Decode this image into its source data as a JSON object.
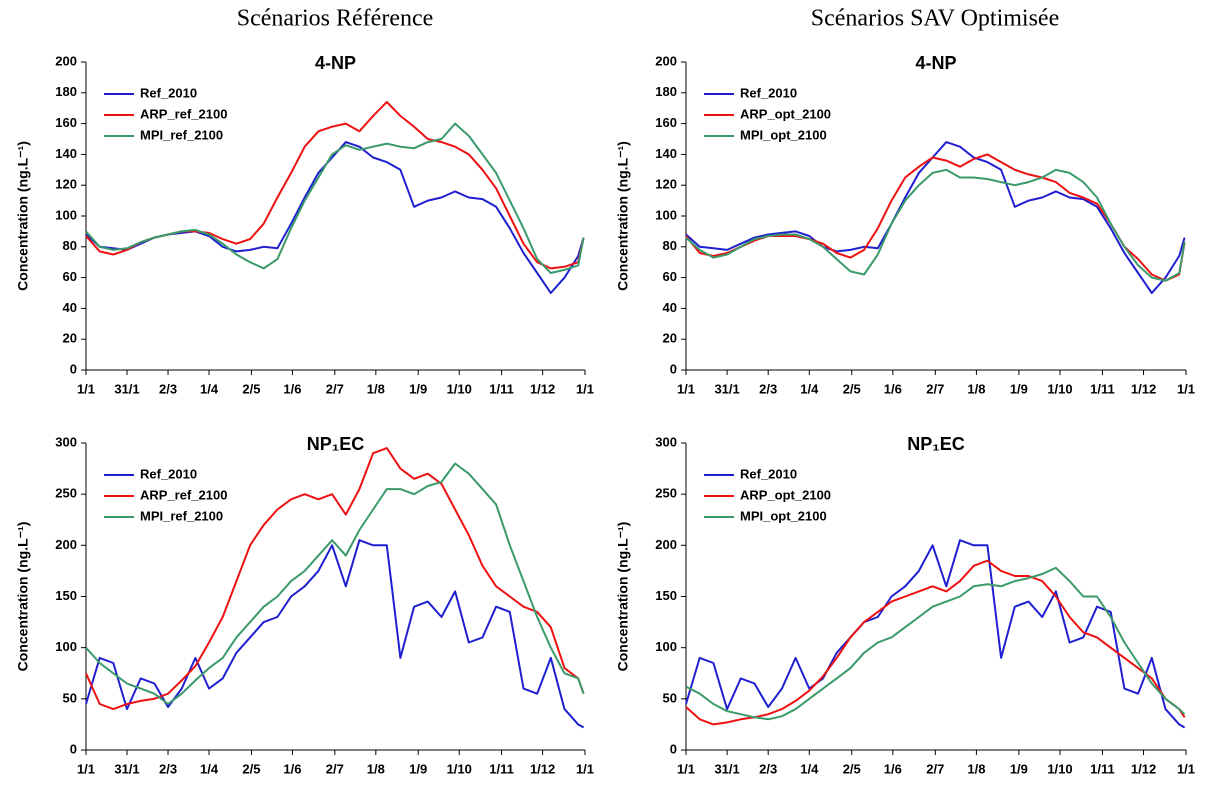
{
  "column_titles": [
    "Scénarios Référence",
    "Scénarios SAV Optimisée"
  ],
  "chart_data": [
    {
      "type": "line",
      "title": "4-NP",
      "ylabel": "Concentration (ng.L⁻¹)",
      "legend": "upper left",
      "x": [
        0,
        10,
        20,
        30,
        40,
        50,
        60,
        70,
        80,
        90,
        100,
        110,
        120,
        130,
        140,
        150,
        160,
        170,
        180,
        190,
        200,
        210,
        220,
        230,
        240,
        250,
        260,
        270,
        280,
        290,
        300,
        310,
        320,
        330,
        340,
        350,
        360,
        364
      ],
      "xlim": [
        0,
        365
      ],
      "xticks": [
        {
          "value": 0,
          "label": "1/1"
        },
        {
          "value": 30,
          "label": "31/1"
        },
        {
          "value": 60,
          "label": "2/3"
        },
        {
          "value": 90,
          "label": "1/4"
        },
        {
          "value": 121,
          "label": "2/5"
        },
        {
          "value": 151,
          "label": "1/6"
        },
        {
          "value": 182,
          "label": "2/7"
        },
        {
          "value": 212,
          "label": "1/8"
        },
        {
          "value": 243,
          "label": "1/9"
        },
        {
          "value": 273,
          "label": "1/10"
        },
        {
          "value": 304,
          "label": "1/11"
        },
        {
          "value": 334,
          "label": "1/12"
        },
        {
          "value": 365,
          "label": "1/1"
        }
      ],
      "ylim": [
        0,
        200
      ],
      "yticks": [
        0,
        20,
        40,
        60,
        80,
        100,
        120,
        140,
        160,
        180,
        200
      ],
      "series": [
        {
          "name": "Ref_2010",
          "color": "#1f1fd1",
          "values": [
            88,
            80,
            79,
            78,
            82,
            86,
            88,
            89,
            90,
            87,
            80,
            77,
            78,
            80,
            79,
            95,
            112,
            128,
            138,
            148,
            145,
            138,
            135,
            130,
            106,
            110,
            112,
            116,
            112,
            111,
            106,
            92,
            76,
            63,
            50,
            60,
            74,
            86
          ]
        },
        {
          "name": "ARP_ref_2100",
          "color": "#ee1111",
          "values": [
            87,
            77,
            75,
            78,
            83,
            86,
            88,
            90,
            90,
            89,
            85,
            82,
            85,
            95,
            112,
            128,
            145,
            155,
            158,
            160,
            155,
            165,
            174,
            165,
            158,
            150,
            148,
            145,
            140,
            130,
            118,
            100,
            82,
            70,
            66,
            67,
            70,
            86
          ]
        },
        {
          "name": "MPI_ref_2100",
          "color": "#3a9a6a",
          "values": [
            90,
            80,
            78,
            79,
            83,
            86,
            88,
            90,
            91,
            88,
            82,
            75,
            70,
            66,
            72,
            92,
            110,
            125,
            140,
            146,
            143,
            145,
            147,
            145,
            144,
            148,
            150,
            160,
            152,
            140,
            128,
            110,
            92,
            72,
            63,
            65,
            68,
            86
          ]
        }
      ]
    },
    {
      "type": "line",
      "title": "4-NP",
      "ylabel": "Concentration (ng.L⁻¹)",
      "legend": "upper left",
      "x": [
        0,
        10,
        20,
        30,
        40,
        50,
        60,
        70,
        80,
        90,
        100,
        110,
        120,
        130,
        140,
        150,
        160,
        170,
        180,
        190,
        200,
        210,
        220,
        230,
        240,
        250,
        260,
        270,
        280,
        290,
        300,
        310,
        320,
        330,
        340,
        350,
        360,
        364
      ],
      "xlim": [
        0,
        365
      ],
      "xticks": [
        {
          "value": 0,
          "label": "1/1"
        },
        {
          "value": 30,
          "label": "31/1"
        },
        {
          "value": 60,
          "label": "2/3"
        },
        {
          "value": 90,
          "label": "1/4"
        },
        {
          "value": 121,
          "label": "2/5"
        },
        {
          "value": 151,
          "label": "1/6"
        },
        {
          "value": 182,
          "label": "2/7"
        },
        {
          "value": 212,
          "label": "1/8"
        },
        {
          "value": 243,
          "label": "1/9"
        },
        {
          "value": 273,
          "label": "1/10"
        },
        {
          "value": 304,
          "label": "1/11"
        },
        {
          "value": 334,
          "label": "1/12"
        },
        {
          "value": 365,
          "label": "1/1"
        }
      ],
      "ylim": [
        0,
        200
      ],
      "yticks": [
        0,
        20,
        40,
        60,
        80,
        100,
        120,
        140,
        160,
        180,
        200
      ],
      "series": [
        {
          "name": "Ref_2010",
          "color": "#1f1fd1",
          "values": [
            88,
            80,
            79,
            78,
            82,
            86,
            88,
            89,
            90,
            87,
            80,
            77,
            78,
            80,
            79,
            95,
            112,
            128,
            138,
            148,
            145,
            138,
            135,
            130,
            106,
            110,
            112,
            116,
            112,
            111,
            106,
            92,
            76,
            63,
            50,
            60,
            74,
            86
          ]
        },
        {
          "name": "ARP_opt_2100",
          "color": "#ee1111",
          "values": [
            87,
            76,
            74,
            76,
            80,
            84,
            87,
            87,
            87,
            85,
            82,
            76,
            73,
            78,
            92,
            110,
            125,
            132,
            138,
            136,
            132,
            137,
            140,
            135,
            130,
            127,
            125,
            122,
            115,
            112,
            108,
            95,
            80,
            72,
            62,
            58,
            62,
            83
          ]
        },
        {
          "name": "MPI_opt_2100",
          "color": "#3a9a6a",
          "values": [
            86,
            78,
            73,
            75,
            80,
            85,
            87,
            88,
            88,
            85,
            80,
            72,
            64,
            62,
            75,
            95,
            110,
            120,
            128,
            130,
            125,
            125,
            124,
            122,
            120,
            122,
            125,
            130,
            128,
            122,
            112,
            95,
            80,
            68,
            60,
            58,
            63,
            83
          ]
        }
      ]
    },
    {
      "type": "line",
      "title": "NP₁EC",
      "ylabel": "Concentration (ng.L⁻¹)",
      "legend": "upper left",
      "x": [
        0,
        10,
        20,
        30,
        40,
        50,
        60,
        70,
        80,
        90,
        100,
        110,
        120,
        130,
        140,
        150,
        160,
        170,
        180,
        190,
        200,
        210,
        220,
        230,
        240,
        250,
        260,
        270,
        280,
        290,
        300,
        310,
        320,
        330,
        340,
        350,
        360,
        364
      ],
      "xlim": [
        0,
        365
      ],
      "xticks": [
        {
          "value": 0,
          "label": "1/1"
        },
        {
          "value": 30,
          "label": "31/1"
        },
        {
          "value": 60,
          "label": "2/3"
        },
        {
          "value": 90,
          "label": "1/4"
        },
        {
          "value": 121,
          "label": "2/5"
        },
        {
          "value": 151,
          "label": "1/6"
        },
        {
          "value": 182,
          "label": "2/7"
        },
        {
          "value": 212,
          "label": "1/8"
        },
        {
          "value": 243,
          "label": "1/9"
        },
        {
          "value": 273,
          "label": "1/10"
        },
        {
          "value": 304,
          "label": "1/11"
        },
        {
          "value": 334,
          "label": "1/12"
        },
        {
          "value": 365,
          "label": "1/1"
        }
      ],
      "ylim": [
        0,
        300
      ],
      "yticks": [
        0,
        50,
        100,
        150,
        200,
        250,
        300
      ],
      "series": [
        {
          "name": "Ref_2010",
          "color": "#1f1fd1",
          "values": [
            45,
            90,
            85,
            40,
            70,
            65,
            42,
            60,
            90,
            60,
            70,
            95,
            110,
            125,
            130,
            150,
            160,
            175,
            200,
            160,
            205,
            200,
            200,
            90,
            140,
            145,
            130,
            155,
            105,
            110,
            140,
            135,
            60,
            55,
            90,
            40,
            25,
            22
          ]
        },
        {
          "name": "ARP_ref_2100",
          "color": "#ee1111",
          "values": [
            75,
            45,
            40,
            45,
            48,
            50,
            55,
            68,
            82,
            105,
            130,
            165,
            200,
            220,
            235,
            245,
            250,
            245,
            250,
            230,
            255,
            290,
            295,
            275,
            265,
            270,
            260,
            235,
            210,
            180,
            160,
            150,
            140,
            135,
            120,
            80,
            70,
            55
          ]
        },
        {
          "name": "MPI_ref_2100",
          "color": "#3a9a6a",
          "values": [
            100,
            85,
            75,
            65,
            60,
            55,
            45,
            55,
            68,
            80,
            90,
            110,
            125,
            140,
            150,
            165,
            175,
            190,
            205,
            190,
            215,
            235,
            255,
            255,
            250,
            258,
            262,
            280,
            270,
            255,
            240,
            200,
            165,
            130,
            100,
            75,
            70,
            55
          ]
        }
      ]
    },
    {
      "type": "line",
      "title": "NP₁EC",
      "ylabel": "Concentration (ng.L⁻¹)",
      "legend": "upper left",
      "x": [
        0,
        10,
        20,
        30,
        40,
        50,
        60,
        70,
        80,
        90,
        100,
        110,
        120,
        130,
        140,
        150,
        160,
        170,
        180,
        190,
        200,
        210,
        220,
        230,
        240,
        250,
        260,
        270,
        280,
        290,
        300,
        310,
        320,
        330,
        340,
        350,
        360,
        364
      ],
      "xlim": [
        0,
        365
      ],
      "xticks": [
        {
          "value": 0,
          "label": "1/1"
        },
        {
          "value": 30,
          "label": "31/1"
        },
        {
          "value": 60,
          "label": "2/3"
        },
        {
          "value": 90,
          "label": "1/4"
        },
        {
          "value": 121,
          "label": "2/5"
        },
        {
          "value": 151,
          "label": "1/6"
        },
        {
          "value": 182,
          "label": "2/7"
        },
        {
          "value": 212,
          "label": "1/8"
        },
        {
          "value": 243,
          "label": "1/9"
        },
        {
          "value": 273,
          "label": "1/10"
        },
        {
          "value": 304,
          "label": "1/11"
        },
        {
          "value": 334,
          "label": "1/12"
        },
        {
          "value": 365,
          "label": "1/1"
        }
      ],
      "ylim": [
        0,
        300
      ],
      "yticks": [
        0,
        50,
        100,
        150,
        200,
        250,
        300
      ],
      "series": [
        {
          "name": "Ref_2010",
          "color": "#1f1fd1",
          "values": [
            45,
            90,
            85,
            40,
            70,
            65,
            42,
            60,
            90,
            60,
            70,
            95,
            110,
            125,
            130,
            150,
            160,
            175,
            200,
            160,
            205,
            200,
            200,
            90,
            140,
            145,
            130,
            155,
            105,
            110,
            140,
            135,
            60,
            55,
            90,
            40,
            25,
            22
          ]
        },
        {
          "name": "ARP_opt_2100",
          "color": "#ee1111",
          "values": [
            42,
            30,
            25,
            27,
            30,
            32,
            35,
            40,
            48,
            58,
            72,
            90,
            110,
            125,
            135,
            145,
            150,
            155,
            160,
            155,
            165,
            180,
            185,
            175,
            170,
            170,
            165,
            150,
            130,
            115,
            110,
            100,
            90,
            80,
            70,
            50,
            40,
            32
          ]
        },
        {
          "name": "MPI_opt_2100",
          "color": "#3a9a6a",
          "values": [
            62,
            55,
            45,
            38,
            35,
            32,
            30,
            33,
            40,
            50,
            60,
            70,
            80,
            95,
            105,
            110,
            120,
            130,
            140,
            145,
            150,
            160,
            162,
            160,
            165,
            168,
            172,
            178,
            165,
            150,
            150,
            130,
            105,
            85,
            65,
            50,
            40,
            35
          ]
        }
      ]
    }
  ]
}
